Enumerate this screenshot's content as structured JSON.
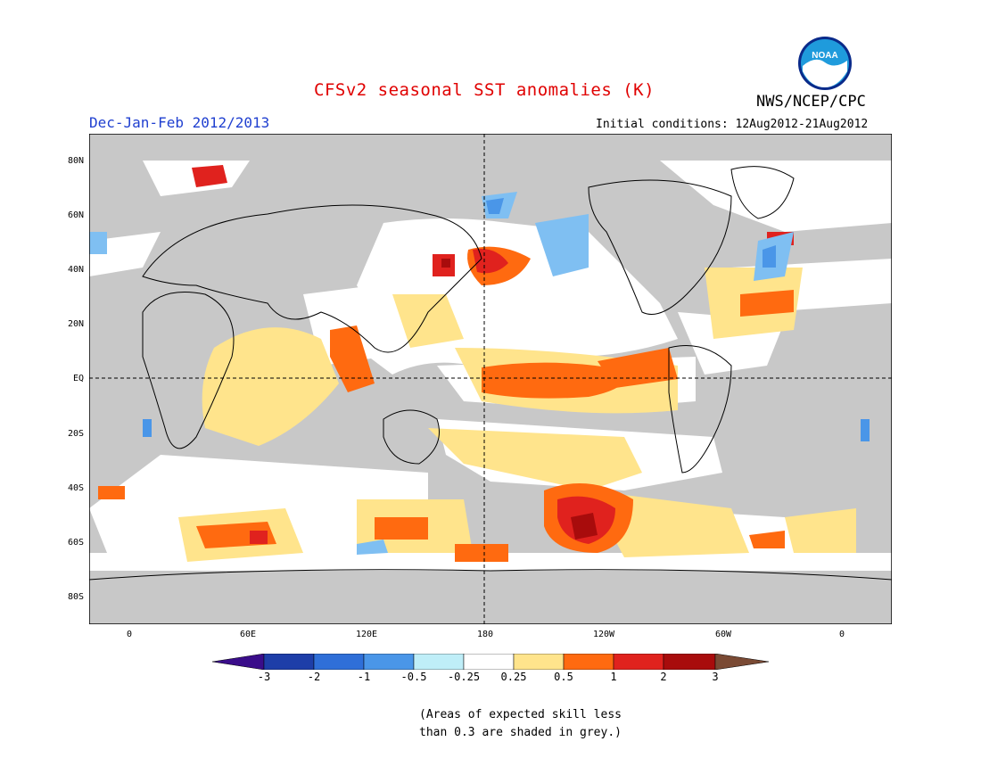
{
  "title": "CFSv2 seasonal SST anomalies (K)",
  "season": "Dec-Jan-Feb 2012/2013",
  "initial_conditions": "Initial conditions: 12Aug2012-21Aug2012",
  "agency": "NWS/NCEP/CPC",
  "logo_text": "NOAA",
  "lat_labels": [
    "80N",
    "60N",
    "40N",
    "20N",
    "EQ",
    "20S",
    "40S",
    "60S",
    "80S"
  ],
  "lon_labels": [
    "0",
    "60E",
    "120E",
    "180",
    "120W",
    "60W",
    "0"
  ],
  "colorbar_labels": [
    "-3",
    "-2",
    "-1",
    "-0.5",
    "-0.25",
    "0.25",
    "0.5",
    "1",
    "2",
    "3"
  ],
  "colorbar_colors": [
    "#1e3ea8",
    "#2f6fd8",
    "#4a96e8",
    "#7fbff2",
    "#bfeef8",
    "#ffffff",
    "#ffe48c",
    "#ff6a10",
    "#e0221e",
    "#a80c0c",
    "#7a4a34",
    "#3a0d8a"
  ],
  "skill_note_line1": "(Areas of expected skill less",
  "skill_note_line2": "than 0.3 are shaded in grey.)",
  "colors": {
    "title": "#e00000",
    "season": "#2040d0",
    "low_skill_grey": "#c8c8c8"
  }
}
